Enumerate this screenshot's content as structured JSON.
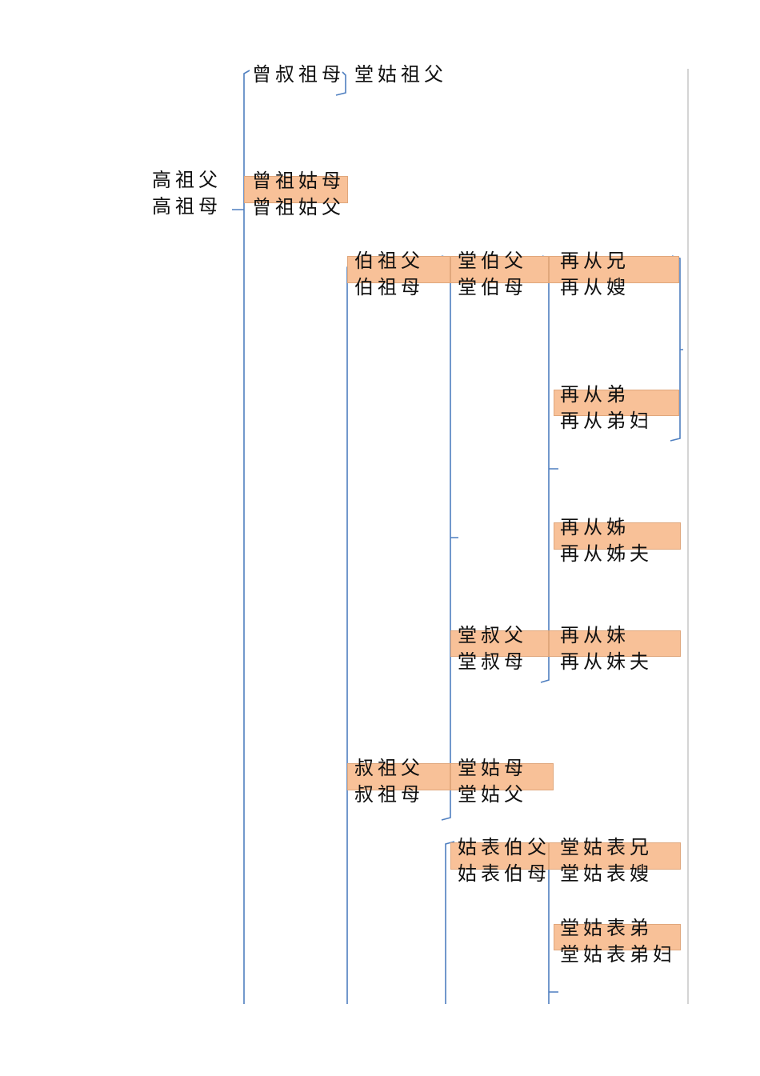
{
  "nodes": [
    {
      "lines": [
        "高祖父",
        "高祖母"
      ]
    },
    {
      "lines": [
        "曾叔祖母"
      ]
    },
    {
      "lines": [
        "堂姑祖父"
      ]
    },
    {
      "lines": [
        "曾祖姑母",
        "曾祖姑父"
      ]
    },
    {
      "lines": [
        "伯祖父",
        "伯祖母"
      ]
    },
    {
      "lines": [
        "堂伯父",
        "堂伯母"
      ]
    },
    {
      "lines": [
        "再从兄",
        "再从嫂"
      ]
    },
    {
      "lines": [
        "再从弟",
        "再从弟妇"
      ]
    },
    {
      "lines": [
        "再从姊",
        "再从姊夫"
      ]
    },
    {
      "lines": [
        "堂叔父",
        "堂叔母"
      ]
    },
    {
      "lines": [
        "再从妹",
        "再从妹夫"
      ]
    },
    {
      "lines": [
        "叔祖父",
        "叔祖母"
      ]
    },
    {
      "lines": [
        "堂姑母",
        "堂姑父"
      ]
    },
    {
      "lines": [
        "姑表伯父",
        "姑表伯母"
      ]
    },
    {
      "lines": [
        "堂姑表兄",
        "堂姑表嫂"
      ]
    },
    {
      "lines": [
        "堂姑表弟",
        "堂姑表弟妇"
      ]
    }
  ]
}
